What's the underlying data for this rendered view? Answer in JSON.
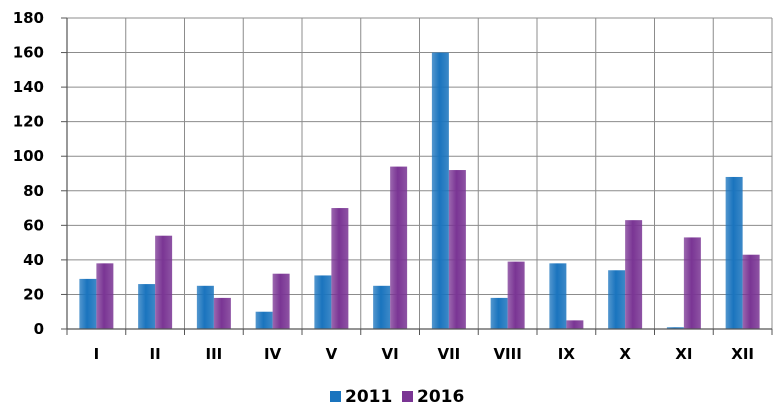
{
  "chart_data": {
    "type": "bar",
    "categories": [
      "I",
      "II",
      "III",
      "IV",
      "V",
      "VI",
      "VII",
      "VIII",
      "IX",
      "X",
      "XI",
      "XII"
    ],
    "series": [
      {
        "name": "2011",
        "color": "#1a74be",
        "values": [
          29,
          26,
          25,
          10,
          31,
          25,
          160,
          18,
          38,
          34,
          1,
          88
        ]
      },
      {
        "name": "2016",
        "color": "#7a3594",
        "values": [
          38,
          54,
          18,
          32,
          70,
          94,
          92,
          39,
          5,
          63,
          53,
          43
        ]
      }
    ],
    "y_ticks": [
      "0",
      "20",
      "40",
      "60",
      "80",
      "100",
      "120",
      "140",
      "160",
      "180"
    ],
    "ylim": [
      0,
      180
    ],
    "grid": true,
    "legend_position": "bottom"
  }
}
